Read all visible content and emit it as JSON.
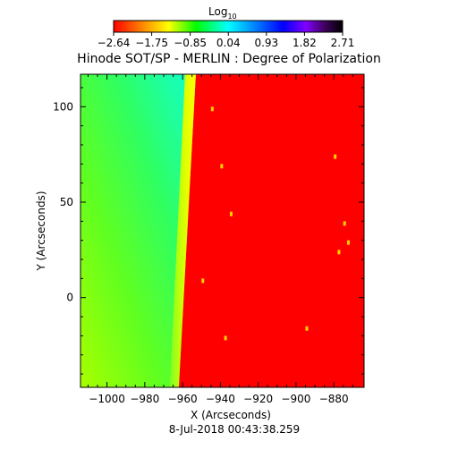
{
  "chart_data": {
    "type": "heatmap",
    "title": "Hinode SOT/SP - MERLIN : Degree of Polarization",
    "xlabel": "X (Arcseconds)",
    "ylabel": "Y (Arcseconds)",
    "date": "8-Jul-2018 00:43:38.259",
    "xlim": [
      -1014,
      -864
    ],
    "ylim": [
      -47,
      117
    ],
    "x_ticks": [
      -1000,
      -980,
      -960,
      -940,
      -920,
      -900,
      -880
    ],
    "x_tick_labels": [
      "−1000",
      "−980",
      "−960",
      "−940",
      "−920",
      "−900",
      "−880"
    ],
    "y_ticks": [
      0,
      50,
      100
    ],
    "y_tick_labels": [
      "0",
      "50",
      "100"
    ],
    "colorbar": {
      "title_main": "Log",
      "title_sub": "10",
      "range": [
        -2.64,
        2.71
      ],
      "ticks": [
        -2.64,
        -1.75,
        -0.85,
        0.04,
        0.93,
        1.82,
        2.71
      ],
      "tick_labels": [
        "−2.64",
        "−1.75",
        "−0.85",
        "0.04",
        "0.93",
        "1.82",
        "2.71"
      ],
      "colormap": [
        "#ff0000",
        "#ff8000",
        "#ffff00",
        "#00ff00",
        "#00ffff",
        "#0080ff",
        "#0000ff",
        "#8000ff",
        "#400060",
        "#000000"
      ]
    },
    "limb": {
      "note_top_x": -953,
      "note_bottom_x": -962,
      "off_disk_value": -1.3,
      "on_disk_value": -2.64
    },
    "grid": false
  }
}
